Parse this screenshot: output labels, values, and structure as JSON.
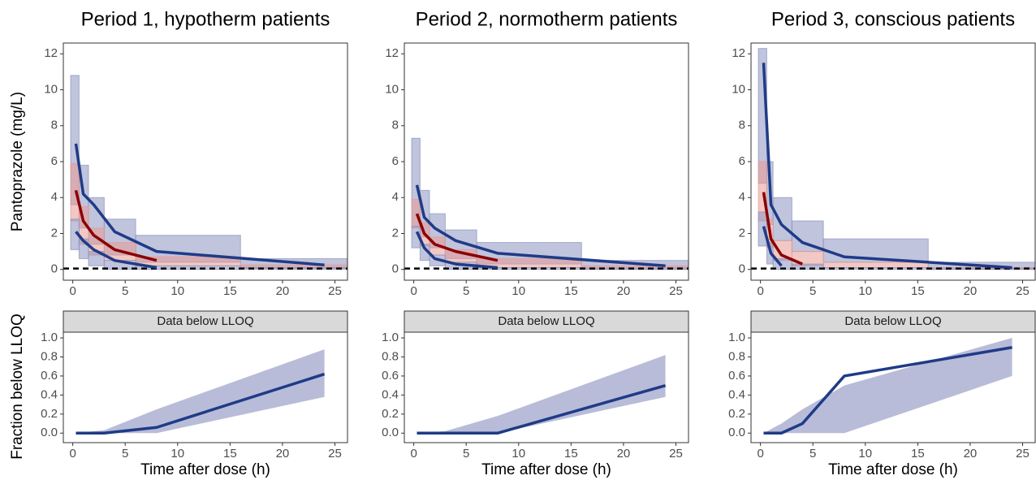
{
  "chart_data": [
    {
      "type": "vpc",
      "title": "Period 1, hypotherm patients",
      "ylabel": "Pantoprazole (mg/L)",
      "xlim": [
        -0.9,
        26.2
      ],
      "ylim": [
        -0.6,
        12.6
      ],
      "xticks": [
        0,
        5,
        10,
        15,
        20,
        25
      ],
      "yticks": [
        0,
        2,
        4,
        6,
        8,
        10,
        12
      ],
      "lloq_line": 0.05,
      "bins": [
        -0.2,
        0.6,
        1.5,
        3,
        6,
        16,
        26.2
      ],
      "intervals": [
        {
          "color": "#8c93bf",
          "lo": [
            3.6,
            2.3,
            1.4,
            0.8,
            0.4,
            0.1
          ],
          "hi": [
            10.8,
            5.8,
            4.0,
            2.8,
            1.9,
            0.6
          ]
        },
        {
          "color": "#e79a94",
          "lo": [
            2.7,
            1.4,
            0.8,
            0.5,
            0.2,
            0.05
          ],
          "hi": [
            5.9,
            3.5,
            2.3,
            1.5,
            0.7,
            0.25
          ]
        },
        {
          "color": "#8c93bf",
          "lo": [
            1.1,
            0.6,
            0.2,
            0,
            0,
            0
          ],
          "hi": [
            2.8,
            1.7,
            1.0,
            0.5,
            0.2,
            0.1
          ]
        }
      ],
      "x": [
        0.3,
        1,
        2,
        4,
        8,
        24
      ],
      "lines": [
        {
          "color": "#1f3b87",
          "values": [
            7.0,
            4.2,
            3.6,
            2.1,
            1.0,
            0.25
          ]
        },
        {
          "color": "#8b0000",
          "values": [
            4.4,
            2.7,
            1.9,
            1.1,
            0.5,
            null
          ]
        },
        {
          "color": "#1f3b87",
          "values": [
            2.1,
            1.6,
            1.1,
            0.5,
            0.1,
            null
          ]
        }
      ]
    },
    {
      "type": "vpc",
      "title": "Period 2, normotherm patients",
      "xlim": [
        -0.9,
        26.2
      ],
      "ylim": [
        -0.6,
        12.6
      ],
      "xticks": [
        0,
        5,
        10,
        15,
        20,
        25
      ],
      "yticks": [
        0,
        2,
        4,
        6,
        8,
        10,
        12
      ],
      "lloq_line": 0.05,
      "bins": [
        -0.2,
        0.6,
        1.5,
        3,
        6,
        16,
        26.2
      ],
      "intervals": [
        {
          "color": "#8c93bf",
          "lo": [
            2.4,
            1.8,
            1.2,
            0.6,
            0.3,
            0.1
          ],
          "hi": [
            7.3,
            4.4,
            3.1,
            2.2,
            1.5,
            0.5
          ]
        },
        {
          "color": "#e79a94",
          "lo": [
            2.3,
            1.3,
            0.8,
            0.4,
            0.1,
            0
          ],
          "hi": [
            3.9,
            2.6,
            1.8,
            1.1,
            0.6,
            0.2
          ]
        },
        {
          "color": "#8c93bf",
          "lo": [
            1.2,
            0.5,
            0.2,
            0,
            0,
            0
          ],
          "hi": [
            2.4,
            1.4,
            0.8,
            0.4,
            0.1,
            0.05
          ]
        }
      ],
      "x": [
        0.3,
        1,
        2,
        4,
        8,
        24
      ],
      "lines": [
        {
          "color": "#1f3b87",
          "values": [
            4.7,
            2.9,
            2.3,
            1.6,
            0.9,
            0.2
          ]
        },
        {
          "color": "#8b0000",
          "values": [
            3.1,
            2.0,
            1.4,
            1.0,
            0.5,
            null
          ]
        },
        {
          "color": "#1f3b87",
          "values": [
            2.1,
            1.2,
            0.6,
            0.3,
            0.1,
            null
          ]
        }
      ]
    },
    {
      "type": "vpc",
      "title": "Period 3, conscious patients",
      "xlim": [
        -0.9,
        26.2
      ],
      "ylim": [
        -0.6,
        12.6
      ],
      "xticks": [
        0,
        5,
        10,
        15,
        20,
        25
      ],
      "yticks": [
        0,
        2,
        4,
        6,
        8,
        10,
        12
      ],
      "lloq_line": 0.05,
      "bins": [
        -0.2,
        0.6,
        1.2,
        3,
        6,
        16,
        26.2
      ],
      "intervals": [
        {
          "color": "#8c93bf",
          "lo": [
            4.8,
            2.5,
            1.6,
            1.0,
            0.4,
            0.1
          ],
          "hi": [
            12.3,
            6.0,
            4.0,
            2.7,
            1.7,
            0.4
          ]
        },
        {
          "color": "#e79a94",
          "lo": [
            2.7,
            1.2,
            0.5,
            0.2,
            0.1,
            0
          ],
          "hi": [
            6.0,
            2.8,
            1.6,
            1.0,
            0.4,
            0.1
          ]
        },
        {
          "color": "#8c93bf",
          "lo": [
            1.3,
            0.3,
            0,
            0,
            0,
            0
          ],
          "hi": [
            3.2,
            1.5,
            0.6,
            0.3,
            0.1,
            0.05
          ]
        }
      ],
      "x": [
        0.3,
        1,
        2,
        4,
        8,
        24
      ],
      "lines": [
        {
          "color": "#1f3b87",
          "values": [
            11.5,
            3.6,
            2.5,
            1.5,
            0.7,
            0.1
          ]
        },
        {
          "color": "#8b0000",
          "values": [
            4.3,
            1.7,
            0.8,
            0.3,
            null,
            null
          ]
        },
        {
          "color": "#1f3b87",
          "values": [
            2.4,
            0.9,
            0.2,
            null,
            null,
            null
          ]
        }
      ]
    },
    {
      "type": "line",
      "strip": "Data below LLOQ",
      "xlabel": "Time after dose (h)",
      "ylabel": "Fraction below LLOQ",
      "xlim": [
        -0.9,
        26.2
      ],
      "ylim": [
        -0.1,
        1.06
      ],
      "xticks": [
        0,
        5,
        10,
        15,
        20,
        25
      ],
      "yticks": [
        {
          "value": 0,
          "label": "0.0"
        },
        0.2,
        0.4,
        0.6,
        0.8,
        {
          "value": 1,
          "label": "1.0"
        }
      ],
      "x": [
        0.3,
        3,
        8,
        24
      ],
      "values": [
        0,
        0,
        0.06,
        0.62
      ],
      "color": "#1f3b87",
      "band": {
        "color": "#b8bcd8",
        "lo": [
          0,
          0,
          0,
          0.38
        ],
        "hi": [
          0,
          0.03,
          0.25,
          0.88
        ]
      }
    },
    {
      "type": "line",
      "strip": "Data below LLOQ",
      "xlabel": "Time after dose (h)",
      "xlim": [
        -0.9,
        26.2
      ],
      "ylim": [
        -0.1,
        1.06
      ],
      "xticks": [
        0,
        5,
        10,
        15,
        20,
        25
      ],
      "yticks": [
        {
          "value": 0,
          "label": "0.0"
        },
        0.2,
        0.4,
        0.6,
        0.8,
        {
          "value": 1,
          "label": "1.0"
        }
      ],
      "x": [
        0.3,
        3,
        8,
        24
      ],
      "values": [
        0,
        0,
        0,
        0.5
      ],
      "color": "#1f3b87",
      "band": {
        "color": "#b8bcd8",
        "lo": [
          0,
          0,
          0,
          0.38
        ],
        "hi": [
          0,
          0.02,
          0.18,
          0.82
        ]
      }
    },
    {
      "type": "line",
      "strip": "Data below LLOQ",
      "xlabel": "Time after dose (h)",
      "xlim": [
        -0.9,
        26.2
      ],
      "ylim": [
        -0.1,
        1.06
      ],
      "xticks": [
        0,
        5,
        10,
        15,
        20,
        25
      ],
      "yticks": [
        {
          "value": 0,
          "label": "0.0"
        },
        0.2,
        0.4,
        0.6,
        0.8,
        {
          "value": 1,
          "label": "1.0"
        }
      ],
      "x": [
        0.3,
        2,
        4,
        8,
        24
      ],
      "values": [
        0,
        0,
        0.1,
        0.6,
        0.9
      ],
      "color": "#1f3b87",
      "band": {
        "color": "#b8bcd8",
        "lo": [
          0,
          0,
          0,
          0,
          0.6
        ],
        "hi": [
          0,
          0.1,
          0.25,
          0.5,
          1.0
        ]
      }
    }
  ]
}
